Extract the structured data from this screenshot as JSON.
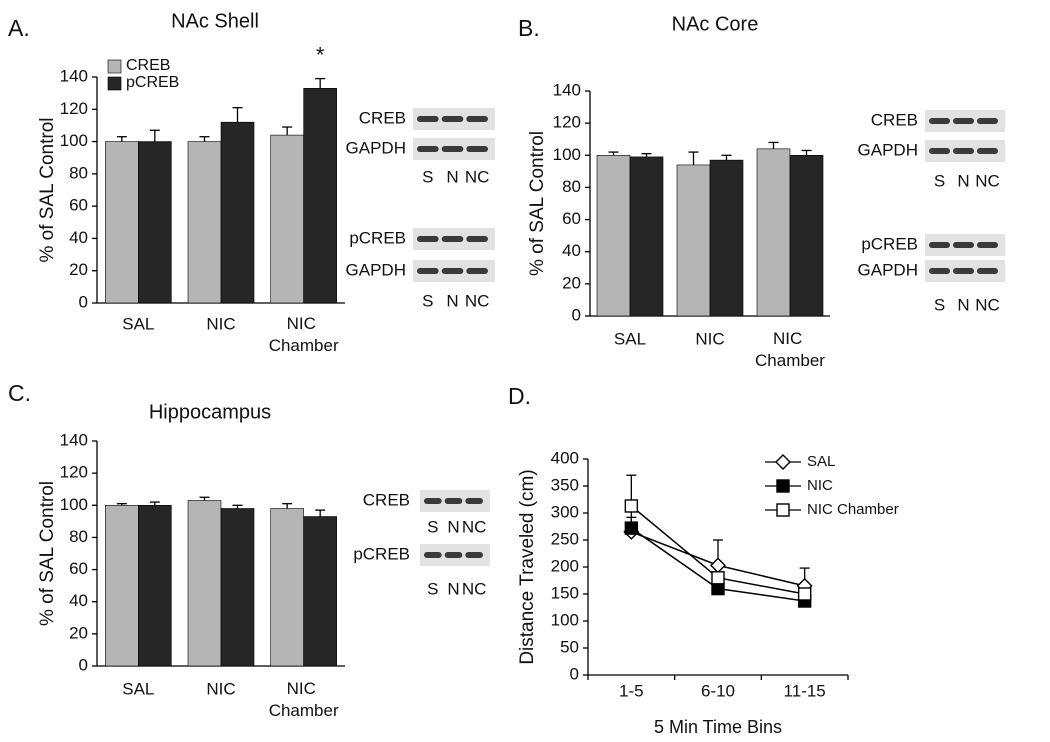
{
  "chart_data": [
    {
      "type": "bar",
      "panel": "A.",
      "title": "NAc Shell",
      "ylabel": "% of SAL Control",
      "categories": [
        "SAL",
        "NIC",
        "NIC Chamber"
      ],
      "series": [
        {
          "name": "CREB",
          "color": "#b5b5b5",
          "values": [
            100,
            100,
            104
          ],
          "errors": [
            3,
            3,
            5
          ]
        },
        {
          "name": "pCREB",
          "color": "#262626",
          "values": [
            100,
            112,
            133
          ],
          "errors": [
            7,
            9,
            6
          ]
        }
      ],
      "ylim": [
        0,
        140
      ],
      "yticks": [
        0,
        20,
        40,
        60,
        80,
        100,
        120,
        140
      ],
      "legend": "top-left",
      "annotation": "*",
      "blots": [
        {
          "rows": [
            "CREB",
            "GAPDH"
          ],
          "lanes": [
            "S",
            "N",
            "NC"
          ]
        },
        {
          "rows": [
            "pCREB",
            "GAPDH"
          ],
          "lanes": [
            "S",
            "N",
            "NC"
          ]
        }
      ]
    },
    {
      "type": "bar",
      "panel": "B.",
      "title": "NAc Core",
      "ylabel": "% of SAL Control",
      "categories": [
        "SAL",
        "NIC",
        "NIC Chamber"
      ],
      "series": [
        {
          "color": "#b5b5b5",
          "values": [
            100,
            94,
            104
          ],
          "errors": [
            2,
            8,
            4
          ]
        },
        {
          "color": "#262626",
          "values": [
            99,
            97,
            100
          ],
          "errors": [
            2,
            3,
            3
          ]
        }
      ],
      "ylim": [
        0,
        140
      ],
      "yticks": [
        0,
        20,
        40,
        60,
        80,
        100,
        120,
        140
      ],
      "blots": [
        {
          "rows": [
            "CREB",
            "GAPDH"
          ],
          "lanes": [
            "S",
            "N",
            "NC"
          ]
        },
        {
          "rows": [
            "pCREB",
            "GAPDH"
          ],
          "lanes": [
            "S",
            "N",
            "NC"
          ]
        }
      ]
    },
    {
      "type": "bar",
      "panel": "C.",
      "title": "Hippocampus",
      "ylabel": "% of SAL Control",
      "categories": [
        "SAL",
        "NIC",
        "NIC Chamber"
      ],
      "series": [
        {
          "color": "#b5b5b5",
          "values": [
            100,
            103,
            98
          ],
          "errors": [
            1,
            2,
            3
          ]
        },
        {
          "color": "#262626",
          "values": [
            100,
            98,
            93
          ],
          "errors": [
            2,
            2,
            4
          ]
        }
      ],
      "ylim": [
        0,
        140
      ],
      "yticks": [
        0,
        20,
        40,
        60,
        80,
        100,
        120,
        140
      ],
      "blots": [
        {
          "rows": [
            "CREB"
          ],
          "lanes": [
            "S",
            "N",
            "NC"
          ]
        },
        {
          "rows": [
            "pCREB"
          ],
          "lanes": [
            "S",
            "N",
            "NC"
          ]
        }
      ]
    },
    {
      "type": "line",
      "panel": "D.",
      "ylabel": "Distance Traveled (cm)",
      "xlabel": "5 Min Time Bins",
      "categories": [
        "1-5",
        "6-10",
        "11-15"
      ],
      "series": [
        {
          "name": "SAL",
          "color": "#000000",
          "marker": "diamond-open",
          "values": [
            265,
            203,
            165
          ],
          "errors": [
            5,
            47,
            33
          ]
        },
        {
          "name": "NIC",
          "color": "#000000",
          "marker": "square-filled",
          "values": [
            272,
            160,
            137
          ],
          "errors": [
            20,
            8,
            5
          ]
        },
        {
          "name": "NIC Chamber",
          "color": "#000000",
          "marker": "square-open",
          "values": [
            313,
            180,
            150
          ],
          "errors": [
            57,
            20,
            10
          ]
        }
      ],
      "ylim": [
        0,
        400
      ],
      "yticks": [
        0,
        50,
        100,
        150,
        200,
        250,
        300,
        350,
        400
      ],
      "legend": "top-right"
    }
  ]
}
